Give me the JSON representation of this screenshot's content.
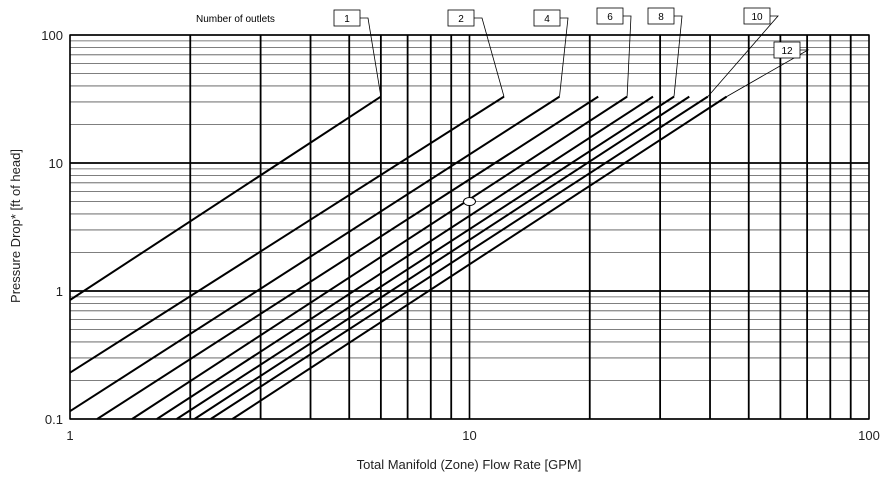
{
  "chart_data": {
    "type": "line",
    "title": "",
    "xlabel": "Total Manifold (Zone) Flow Rate [GPM]",
    "ylabel": "Pressure Drop* [ft of head]",
    "x_scale": "log",
    "y_scale": "log",
    "xlim": [
      1,
      100
    ],
    "ylim": [
      0.1,
      100
    ],
    "x_tick_labels": [
      "1",
      "10",
      "100"
    ],
    "y_tick_labels": [
      "0.1",
      "1",
      "10",
      "100"
    ],
    "grid": true,
    "legend_title": "Number of outlets",
    "series": [
      {
        "name": "1",
        "x": [
          1.0,
          6.0
        ],
        "y": [
          0.85,
          33
        ]
      },
      {
        "name": "2",
        "x": [
          1.0,
          12.2
        ],
        "y": [
          0.23,
          33
        ]
      },
      {
        "name": "4",
        "x": [
          1.0,
          16.8
        ],
        "y": [
          0.115,
          33
        ]
      },
      {
        "name": "",
        "x": [
          1.17,
          21.0
        ],
        "y": [
          0.1,
          33
        ]
      },
      {
        "name": "6",
        "x": [
          1.43,
          24.8
        ],
        "y": [
          0.1,
          33
        ]
      },
      {
        "name": "",
        "x": [
          1.65,
          28.8
        ],
        "y": [
          0.1,
          33
        ]
      },
      {
        "name": "8",
        "x": [
          1.85,
          32.5
        ],
        "y": [
          0.1,
          33
        ]
      },
      {
        "name": "",
        "x": [
          2.05,
          35.5
        ],
        "y": [
          0.1,
          33
        ]
      },
      {
        "name": "10",
        "x": [
          2.25,
          39.5
        ],
        "y": [
          0.1,
          33
        ]
      },
      {
        "name": "12",
        "x": [
          2.55,
          44.0
        ],
        "y": [
          0.1,
          33
        ]
      }
    ],
    "marker_point": {
      "x": 10,
      "y": 5
    }
  }
}
